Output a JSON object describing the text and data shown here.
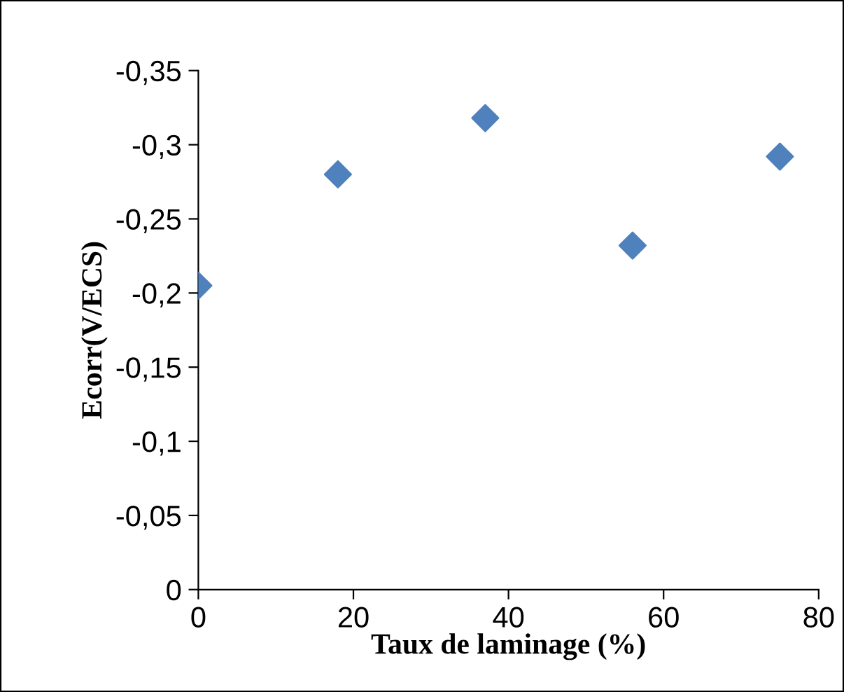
{
  "chart_data": {
    "type": "scatter",
    "xlabel": "Taux de laminage (%)",
    "ylabel": "Ecorr(V/ECS)",
    "x": [
      0,
      18,
      37,
      56,
      75
    ],
    "series": [
      {
        "color": "#4f81bd",
        "values": [
          -0.205,
          -0.28,
          -0.318,
          -0.232,
          -0.292
        ]
      }
    ],
    "marker": "diamond",
    "xlim": [
      0,
      80
    ],
    "xticks": [
      0,
      20,
      40,
      60,
      80
    ],
    "ylim": [
      0,
      -0.35
    ],
    "yticks": [
      {
        "value": 0,
        "label": "0"
      },
      {
        "value": -0.05,
        "label": "-0,05"
      },
      {
        "value": -0.1,
        "label": "-0,1"
      },
      {
        "value": -0.15,
        "label": "-0,15"
      },
      {
        "value": -0.2,
        "label": "-0,2"
      },
      {
        "value": -0.25,
        "label": "-0,25"
      },
      {
        "value": -0.3,
        "label": "-0,3"
      },
      {
        "value": -0.35,
        "label": "-0,35"
      }
    ],
    "grid": false,
    "legend": false
  }
}
